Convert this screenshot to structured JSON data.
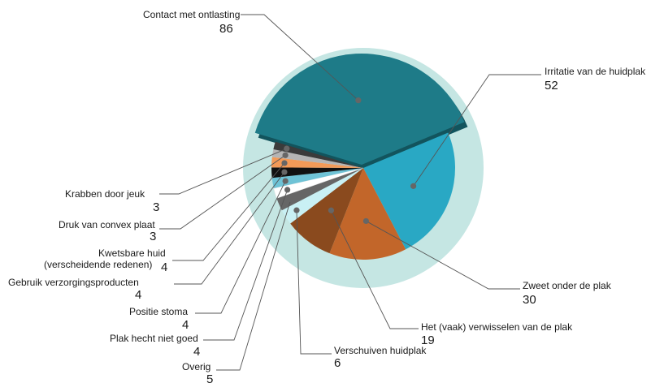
{
  "chart_data": {
    "type": "pie",
    "title": "",
    "slices": [
      {
        "label": "Contact met ontlasting",
        "value": 86,
        "color": "#1e7b88"
      },
      {
        "label": "Irritatie van de huidplak",
        "value": 52,
        "color": "#29a8c4"
      },
      {
        "label": "Zweet onder de plak",
        "value": 30,
        "color": "#c2662a"
      },
      {
        "label": "Het (vaak) verwisselen van de plak",
        "value": 19,
        "color": "#8a4a1e"
      },
      {
        "label": "Verschuiven huidplak",
        "value": 6,
        "color": "#c9f0f4"
      },
      {
        "label": "Overig",
        "value": 5,
        "color": "#666666"
      },
      {
        "label": "Plak hecht niet goed",
        "value": 4,
        "color": "#ffffff"
      },
      {
        "label": "Positie stoma",
        "value": 4,
        "color": "#6fc3d6"
      },
      {
        "label": "Gebruik verzorgingsproducten",
        "value": 4,
        "color": "#111111"
      },
      {
        "label": "Kwetsbare huid (verscheidende redenen)",
        "value": 4,
        "color": "#f29a58"
      },
      {
        "label": "Druk van convex plaat",
        "value": 3,
        "color": "#b5b5b5"
      },
      {
        "label": "Krabben door jeuk",
        "value": 3,
        "color": "#3b3b3b"
      }
    ]
  },
  "colors": {
    "halo": "#c5e6e3",
    "leader": "#555555",
    "dot": "#666666",
    "background": "#ffffff"
  }
}
